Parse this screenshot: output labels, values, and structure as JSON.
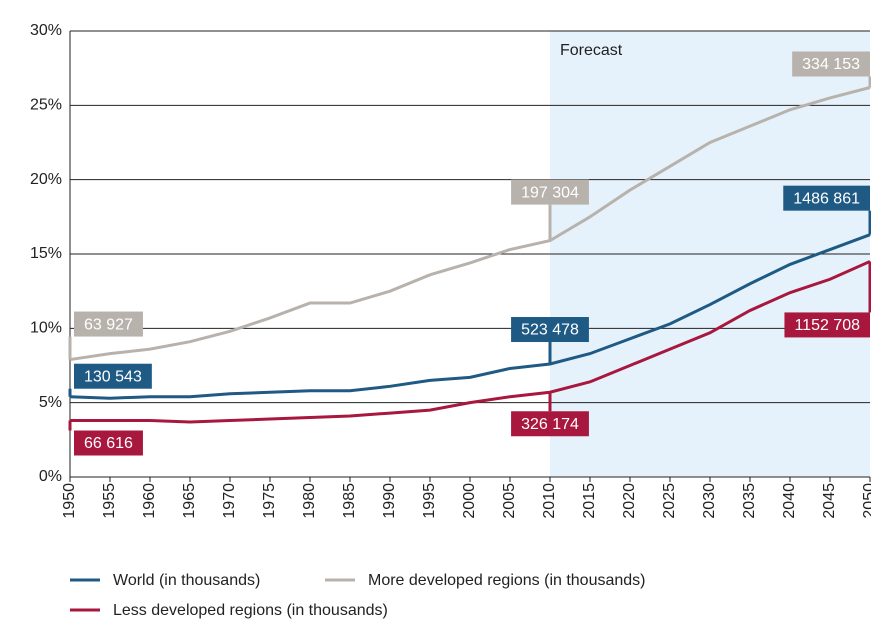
{
  "chart_data": {
    "type": "line",
    "x": [
      1950,
      1955,
      1960,
      1965,
      1970,
      1975,
      1980,
      1985,
      1990,
      1995,
      2000,
      2005,
      2010,
      2015,
      2020,
      2025,
      2030,
      2035,
      2040,
      2045,
      2050
    ],
    "xlim": [
      1950,
      2050
    ],
    "ylim": [
      0,
      30
    ],
    "yticks": [
      {
        "value": 0,
        "label": "0%"
      },
      {
        "value": 5,
        "label": "5%"
      },
      {
        "value": 10,
        "label": "10%"
      },
      {
        "value": 15,
        "label": "15%"
      },
      {
        "value": 20,
        "label": "20%"
      },
      {
        "value": 25,
        "label": "25%"
      },
      {
        "value": 30,
        "label": "30%"
      }
    ],
    "grid": true,
    "forecast": {
      "label": "Forecast",
      "start": 2010,
      "end": 2050,
      "color": "#e6f2fb"
    },
    "series": [
      {
        "name": "World (in thousands)",
        "color": "#1f5a85",
        "position": "above",
        "values": [
          5.4,
          5.3,
          5.4,
          5.4,
          5.6,
          5.7,
          5.8,
          5.8,
          6.1,
          6.5,
          6.7,
          7.3,
          7.6,
          8.3,
          9.3,
          10.3,
          11.6,
          13.0,
          14.3,
          15.3,
          16.3
        ],
        "callouts": [
          {
            "x": 1950,
            "label": "130 543"
          },
          {
            "x": 2010,
            "label": "523 478"
          },
          {
            "x": 2050,
            "label": "1486 861"
          }
        ]
      },
      {
        "name": "More developed regions (in thousands)",
        "color": "#b8b2ad",
        "position": "above",
        "values": [
          7.9,
          8.3,
          8.6,
          9.1,
          9.8,
          10.7,
          11.7,
          11.7,
          12.5,
          13.6,
          14.4,
          15.3,
          15.9,
          17.5,
          19.3,
          20.9,
          22.5,
          23.6,
          24.7,
          25.5,
          26.2
        ],
        "callouts": [
          {
            "x": 1950,
            "label": "63 927"
          },
          {
            "x": 2010,
            "label": "197 304"
          },
          {
            "x": 2050,
            "label": "334 153"
          }
        ]
      },
      {
        "name": "Less developed regions (in thousands)",
        "color": "#a8173e",
        "position": "below",
        "values": [
          3.8,
          3.8,
          3.8,
          3.7,
          3.8,
          3.9,
          4.0,
          4.1,
          4.3,
          4.5,
          5.0,
          5.4,
          5.7,
          6.4,
          7.5,
          8.6,
          9.7,
          11.2,
          12.4,
          13.3,
          14.5
        ],
        "callouts": [
          {
            "x": 1950,
            "label": "66 616"
          },
          {
            "x": 2010,
            "label": "326 174"
          },
          {
            "x": 2050,
            "label": "1152 708"
          }
        ]
      }
    ]
  }
}
